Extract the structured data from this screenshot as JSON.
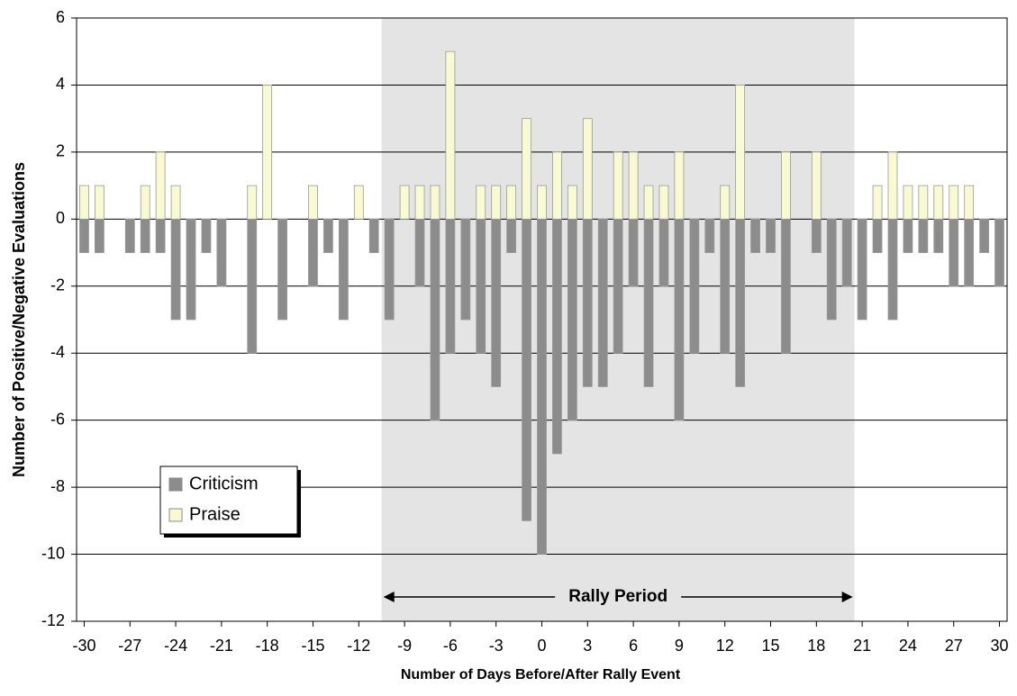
{
  "chart_data": {
    "type": "bar",
    "x_label": "Number of Days Before/After Rally Event",
    "y_label": "Number of Positive/Negative Evaluations",
    "x": [
      -30,
      -29,
      -28,
      -27,
      -26,
      -25,
      -24,
      -23,
      -22,
      -21,
      -20,
      -19,
      -18,
      -17,
      -16,
      -15,
      -14,
      -13,
      -12,
      -11,
      -10,
      -9,
      -8,
      -7,
      -6,
      -5,
      -4,
      -3,
      -2,
      -1,
      0,
      1,
      2,
      3,
      4,
      5,
      6,
      7,
      8,
      9,
      10,
      11,
      12,
      13,
      14,
      15,
      16,
      17,
      18,
      19,
      20,
      21,
      22,
      23,
      24,
      25,
      26,
      27,
      28,
      29,
      30
    ],
    "series": [
      {
        "name": "Criticism",
        "color": "#8c8c8c",
        "values": [
          -1,
          -1,
          0,
          -1,
          -1,
          -1,
          -3,
          -3,
          -1,
          -2,
          0,
          -4,
          0,
          -3,
          0,
          -2,
          -1,
          -3,
          0,
          -1,
          -3,
          0,
          -2,
          -6,
          -4,
          -3,
          -4,
          -5,
          -1,
          -9,
          -10,
          -7,
          -6,
          -5,
          -5,
          -4,
          -2,
          -5,
          -2,
          -6,
          -4,
          -1,
          -4,
          -5,
          -1,
          -1,
          -4,
          0,
          -1,
          -3,
          -2,
          -3,
          -1,
          -3,
          -1,
          -1,
          -1,
          -2,
          -2,
          -1,
          -2
        ]
      },
      {
        "name": "Praise",
        "color": "#fafad2",
        "values": [
          1,
          1,
          0,
          0,
          1,
          2,
          1,
          0,
          0,
          0,
          0,
          1,
          4,
          0,
          0,
          1,
          0,
          0,
          1,
          0,
          0,
          1,
          1,
          1,
          5,
          0,
          1,
          1,
          1,
          3,
          1,
          2,
          1,
          3,
          0,
          2,
          2,
          1,
          1,
          2,
          0,
          0,
          1,
          4,
          0,
          0,
          2,
          0,
          2,
          0,
          0,
          0,
          1,
          2,
          1,
          1,
          1,
          1,
          1,
          0,
          0
        ]
      }
    ],
    "xlim": [
      -30.5,
      30.5
    ],
    "xticks": [
      -30,
      -27,
      -24,
      -21,
      -18,
      -15,
      -12,
      -9,
      -6,
      -3,
      0,
      3,
      6,
      9,
      12,
      15,
      18,
      21,
      24,
      27,
      30
    ],
    "ylim": [
      -12,
      6
    ],
    "yticks": [
      -12,
      -10,
      -8,
      -6,
      -4,
      -2,
      0,
      2,
      4,
      6
    ],
    "grid": true,
    "highlight": {
      "xrange": [
        -10.5,
        20.5
      ],
      "label": "Rally Period"
    },
    "legend": "lower-left"
  }
}
